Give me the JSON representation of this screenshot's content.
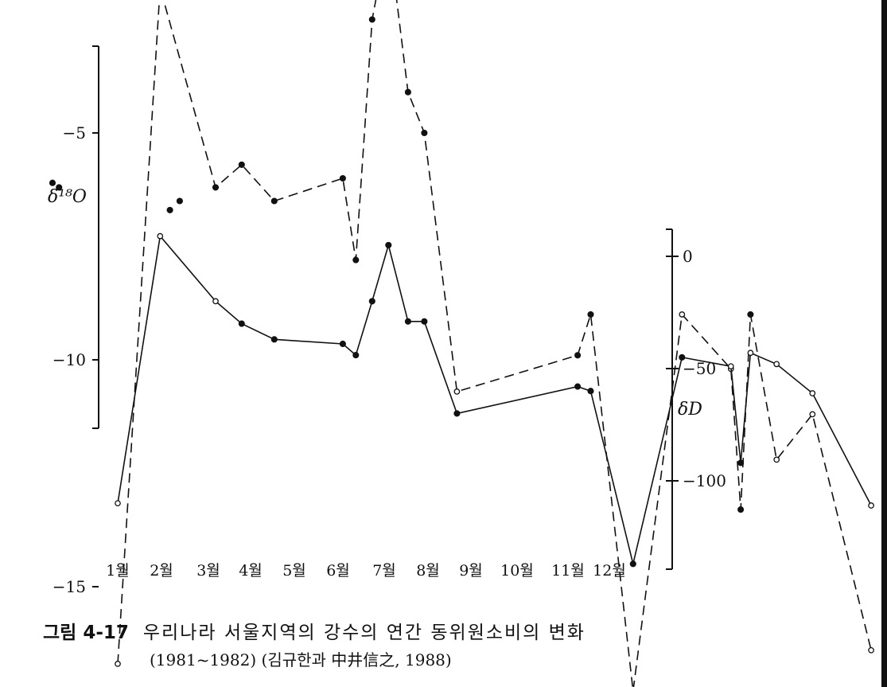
{
  "chart_data": {
    "type": "line",
    "caption_label": "그림 4-17",
    "caption_title": "우리나라 서울지역의 강수의 연간 동위원소비의 변화",
    "caption_subtitle": "(1981~1982) (김규한과 中井信之, 1988)",
    "left_axis": {
      "label": "δ¹⁸O",
      "ticks": [
        -5,
        -10,
        -15
      ],
      "tick_labels": [
        "−5",
        "−10",
        "−15"
      ],
      "range": [
        -18,
        4
      ]
    },
    "right_axis": {
      "label": "δD",
      "ticks": [
        0,
        -50,
        -100
      ],
      "tick_labels": [
        "0",
        "−50",
        "−100"
      ],
      "range": [
        -140,
        12
      ]
    },
    "x_axis": {
      "categories": [
        "1월",
        "2월",
        "3월",
        "4월",
        "5월",
        "6월",
        "7월",
        "8월",
        "9월",
        "10월",
        "11월",
        "12월"
      ]
    },
    "series": [
      {
        "axis": "left",
        "line_style": "dashed",
        "points": [
          {
            "x": 1.3,
            "y": -16.7,
            "marker": "open"
          },
          {
            "x": 1.95,
            "y": -1.8,
            "marker": "open"
          },
          {
            "x": 2.8,
            "y": -6.2,
            "marker": "filled"
          },
          {
            "x": 3.2,
            "y": -5.7,
            "marker": "filled"
          },
          {
            "x": 3.7,
            "y": -6.5,
            "marker": "filled"
          },
          {
            "x": 4.75,
            "y": -6.0,
            "marker": "filled"
          },
          {
            "x": 4.95,
            "y": -7.8,
            "marker": "filled"
          },
          {
            "x": 5.2,
            "y": -2.5,
            "marker": "filled"
          },
          {
            "x": 5.45,
            "y": -0.6,
            "marker": "filled"
          },
          {
            "x": 5.75,
            "y": -4.1,
            "marker": "filled"
          },
          {
            "x": 6.0,
            "y": -5.0,
            "marker": "filled"
          },
          {
            "x": 6.5,
            "y": -10.7,
            "marker": "open"
          },
          {
            "x": 8.35,
            "y": -9.9,
            "marker": "filled"
          },
          {
            "x": 8.55,
            "y": -9.0,
            "marker": "filled"
          },
          {
            "x": 9.2,
            "y": -17.3,
            "marker": "filled"
          },
          {
            "x": 9.95,
            "y": -9.0,
            "marker": "open"
          },
          {
            "x": 10.7,
            "y": -10.2,
            "marker": "open"
          },
          {
            "x": 10.85,
            "y": -13.3,
            "marker": "filled"
          },
          {
            "x": 11.0,
            "y": -9.0,
            "marker": "filled"
          },
          {
            "x": 11.4,
            "y": -12.2,
            "marker": "open"
          },
          {
            "x": 11.95,
            "y": -11.2,
            "marker": "open"
          },
          {
            "x": 12.85,
            "y": -16.4,
            "marker": "open"
          }
        ],
        "extra_points": [
          {
            "x": 0.3,
            "y": -6.1,
            "marker": "filled"
          },
          {
            "x": 0.4,
            "y": -6.2,
            "marker": "filled"
          },
          {
            "x": 2.1,
            "y": -6.7,
            "marker": "filled"
          },
          {
            "x": 2.25,
            "y": -6.5,
            "marker": "filled"
          }
        ]
      },
      {
        "axis": "right",
        "line_style": "solid",
        "points": [
          {
            "x": 1.3,
            "y": -110,
            "marker": "open"
          },
          {
            "x": 1.95,
            "y": 9,
            "marker": "open"
          },
          {
            "x": 2.8,
            "y": -20,
            "marker": "open"
          },
          {
            "x": 3.2,
            "y": -30,
            "marker": "filled"
          },
          {
            "x": 3.7,
            "y": -37,
            "marker": "filled"
          },
          {
            "x": 4.75,
            "y": -39,
            "marker": "filled"
          },
          {
            "x": 4.95,
            "y": -44,
            "marker": "filled"
          },
          {
            "x": 5.2,
            "y": -20,
            "marker": "filled"
          },
          {
            "x": 5.45,
            "y": 5,
            "marker": "filled"
          },
          {
            "x": 5.75,
            "y": -29,
            "marker": "filled"
          },
          {
            "x": 6.0,
            "y": -29,
            "marker": "filled"
          },
          {
            "x": 6.5,
            "y": -70,
            "marker": "filled"
          },
          {
            "x": 8.35,
            "y": -58,
            "marker": "filled"
          },
          {
            "x": 8.55,
            "y": -60,
            "marker": "filled"
          },
          {
            "x": 9.2,
            "y": -137,
            "marker": "filled"
          },
          {
            "x": 9.95,
            "y": -45,
            "marker": "filled"
          },
          {
            "x": 10.7,
            "y": -49,
            "marker": "open"
          },
          {
            "x": 10.85,
            "y": -92,
            "marker": "filled"
          },
          {
            "x": 11.0,
            "y": -43,
            "marker": "open"
          },
          {
            "x": 11.4,
            "y": -48,
            "marker": "open"
          },
          {
            "x": 11.95,
            "y": -61,
            "marker": "open"
          },
          {
            "x": 12.85,
            "y": -111,
            "marker": "open"
          }
        ]
      }
    ]
  }
}
